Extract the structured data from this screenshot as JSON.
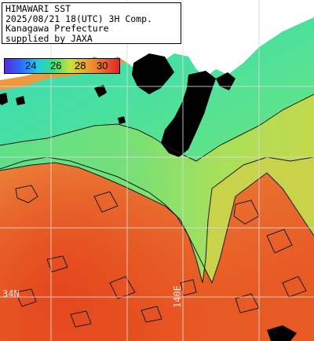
{
  "title": {
    "line1": "HIMAWARI SST",
    "line2": "2025/08/21 18(UTC) 3H Comp.",
    "line3": "Kanagawa Prefecture",
    "line4": "supplied by JAXA"
  },
  "colorbar": {
    "ticks": [
      "24",
      "26",
      "28",
      "30"
    ],
    "colors": [
      "#5a2ad8",
      "#2a6cff",
      "#23c8e8",
      "#3de07a",
      "#c8e23a",
      "#f0a030",
      "#e86a2a",
      "#e4222a"
    ]
  },
  "grid_labels": {
    "latitude": "34N",
    "longitude": "140E"
  },
  "colors": {
    "land": "#ffffff",
    "cloud_mask": "#000000",
    "grid": "#dcdcdc",
    "coastal_cool": "#46e0a8",
    "warm_sea": "#e8843e",
    "warmest_sea": "#e4501e"
  }
}
